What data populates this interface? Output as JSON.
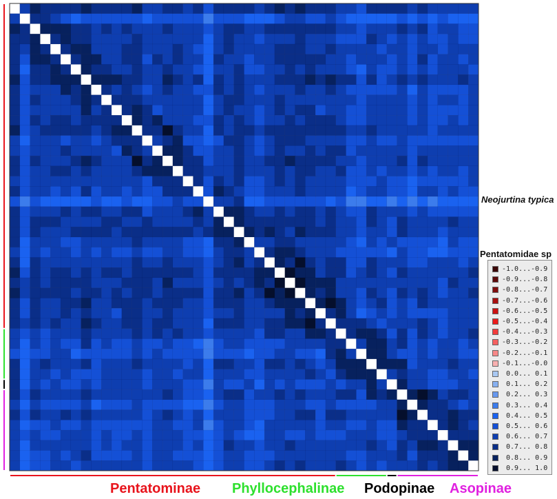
{
  "chart_data": {
    "type": "heatmap",
    "title": "",
    "n_taxa": 46,
    "value_range": [
      -1.0,
      1.0
    ],
    "diagonal_value": 1.0,
    "row_labels": [
      {
        "row_index": 19,
        "text": "Neojurtina typica"
      },
      {
        "row_index": 24,
        "text": "Pentatomidae sp"
      }
    ],
    "groups": [
      {
        "name": "Pentatominae",
        "start": 0,
        "end": 32,
        "color": "#e8141c"
      },
      {
        "name": "Phyllocephalinae",
        "start": 32,
        "end": 37,
        "color": "#2ee02e"
      },
      {
        "name": "Podopinae",
        "start": 37,
        "end": 38,
        "color": "#000000"
      },
      {
        "name": "Asopinae",
        "start": 38,
        "end": 46,
        "color": "#e020e0"
      }
    ],
    "legend": [
      {
        "label": "-1.0...-0.9",
        "color": "#3a0707"
      },
      {
        "label": "-0.9...-0.8",
        "color": "#5c0a0a"
      },
      {
        "label": "-0.8...-0.7",
        "color": "#800d0d"
      },
      {
        "label": "-0.7...-0.6",
        "color": "#a80f0f"
      },
      {
        "label": "-0.6...-0.5",
        "color": "#cc1111"
      },
      {
        "label": "-0.5...-0.4",
        "color": "#ec1c1c"
      },
      {
        "label": "-0.4...-0.3",
        "color": "#f23c3c"
      },
      {
        "label": "-0.3...-0.2",
        "color": "#f56060"
      },
      {
        "label": "-0.2...-0.1",
        "color": "#f78888"
      },
      {
        "label": "-0.1...-0.0",
        "color": "#f8b0b0"
      },
      {
        "label": " 0.0... 0.1",
        "color": "#a9c8f2"
      },
      {
        "label": " 0.1... 0.2",
        "color": "#87b0f0"
      },
      {
        "label": " 0.2... 0.3",
        "color": "#6798ee"
      },
      {
        "label": " 0.3... 0.4",
        "color": "#3c7cec"
      },
      {
        "label": " 0.4... 0.5",
        "color": "#1a62f0"
      },
      {
        "label": " 0.5... 0.6",
        "color": "#1450d6"
      },
      {
        "label": " 0.6... 0.7",
        "color": "#0e3eb0"
      },
      {
        "label": " 0.7... 0.8",
        "color": "#0a2e88"
      },
      {
        "label": " 0.8... 0.9",
        "color": "#07215e"
      },
      {
        "label": " 0.9... 1.0",
        "color": "#050f2c"
      }
    ]
  }
}
